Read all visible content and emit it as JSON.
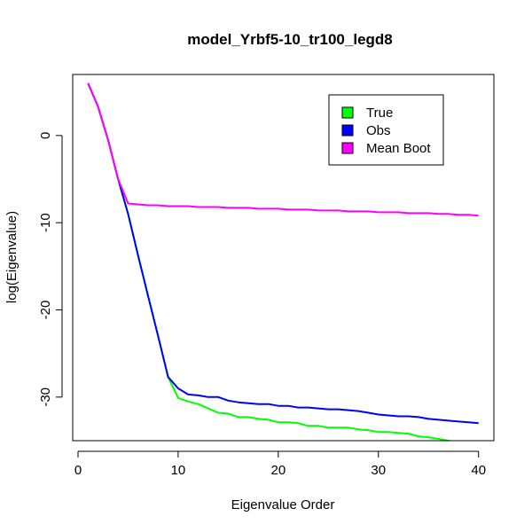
{
  "chart_data": {
    "type": "line",
    "title": "model_Yrbf5-10_tr100_legd8",
    "xlabel": "Eigenvalue Order",
    "ylabel": "log(Eigenvalue)",
    "xlim": [
      0,
      41
    ],
    "ylim": [
      -35,
      7
    ],
    "xticks": [
      0,
      10,
      20,
      30,
      40
    ],
    "yticks": [
      0,
      -10,
      -20,
      -30
    ],
    "legend_position": "top-right",
    "grid": false,
    "series": [
      {
        "name": "True",
        "color": "#00ff00",
        "x": [
          1,
          2,
          3,
          4,
          5,
          6,
          7,
          8,
          9,
          10,
          11,
          12,
          13,
          14,
          15,
          16,
          17,
          18,
          19,
          20,
          21,
          22,
          23,
          24,
          25,
          26,
          27,
          28,
          29,
          30,
          31,
          32,
          33,
          34,
          35,
          36,
          37,
          38,
          39,
          40
        ],
        "y": [
          6.0,
          3.3,
          -0.5,
          -5.0,
          -9.0,
          -13.8,
          -18.4,
          -23.0,
          -27.7,
          -30.1,
          -30.5,
          -30.8,
          -31.3,
          -31.8,
          -31.9,
          -32.3,
          -32.3,
          -32.5,
          -32.6,
          -32.9,
          -32.9,
          -33.0,
          -33.3,
          -33.3,
          -33.5,
          -33.5,
          -33.5,
          -33.7,
          -33.8,
          -34.0,
          -34.0,
          -34.1,
          -34.2,
          -34.5,
          -34.6,
          -34.8,
          -35.0,
          -35.2,
          -35.3,
          -35.5
        ]
      },
      {
        "name": "Obs",
        "color": "#0000ff",
        "x": [
          1,
          2,
          3,
          4,
          5,
          6,
          7,
          8,
          9,
          10,
          11,
          12,
          13,
          14,
          15,
          16,
          17,
          18,
          19,
          20,
          21,
          22,
          23,
          24,
          25,
          26,
          27,
          28,
          29,
          30,
          31,
          32,
          33,
          34,
          35,
          36,
          37,
          38,
          39,
          40
        ],
        "y": [
          6.0,
          3.3,
          -0.5,
          -5.0,
          -9.0,
          -13.8,
          -18.4,
          -23.0,
          -27.7,
          -29.0,
          -29.7,
          -29.8,
          -30.0,
          -30.0,
          -30.4,
          -30.6,
          -30.7,
          -30.8,
          -30.8,
          -31.0,
          -31.0,
          -31.2,
          -31.2,
          -31.3,
          -31.4,
          -31.4,
          -31.5,
          -31.6,
          -31.8,
          -32.0,
          -32.1,
          -32.2,
          -32.2,
          -32.3,
          -32.5,
          -32.6,
          -32.7,
          -32.8,
          -32.9,
          -33.0
        ]
      },
      {
        "name": "Mean Boot",
        "color": "#ff00ff",
        "x": [
          1,
          2,
          3,
          4,
          5,
          6,
          7,
          8,
          9,
          10,
          11,
          12,
          13,
          14,
          15,
          16,
          17,
          18,
          19,
          20,
          21,
          22,
          23,
          24,
          25,
          26,
          27,
          28,
          29,
          30,
          31,
          32,
          33,
          34,
          35,
          36,
          37,
          38,
          39,
          40
        ],
        "y": [
          6.0,
          3.3,
          -0.5,
          -5.0,
          -7.8,
          -7.9,
          -8.0,
          -8.0,
          -8.1,
          -8.1,
          -8.1,
          -8.2,
          -8.2,
          -8.2,
          -8.3,
          -8.3,
          -8.3,
          -8.4,
          -8.4,
          -8.4,
          -8.5,
          -8.5,
          -8.5,
          -8.6,
          -8.6,
          -8.6,
          -8.7,
          -8.7,
          -8.7,
          -8.8,
          -8.8,
          -8.8,
          -8.9,
          -8.9,
          -8.9,
          -9.0,
          -9.0,
          -9.1,
          -9.1,
          -9.2
        ]
      }
    ]
  }
}
